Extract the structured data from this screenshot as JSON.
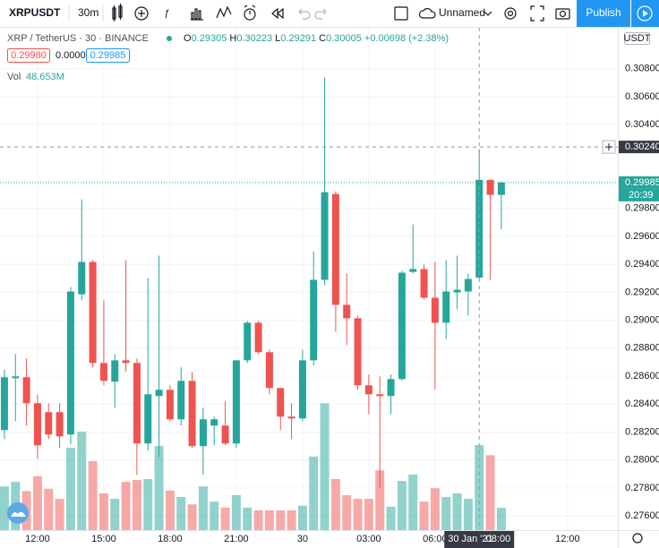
{
  "toolbar": {
    "symbol": "XRPUSDT",
    "interval": "30m",
    "layout_name": "Unnamed",
    "publish": "Publish"
  },
  "legend": {
    "title": "XRP / TetherUS · 30 · BINANCE",
    "o": "O",
    "h": "H",
    "l": "L",
    "c": "C",
    "change": "+0.00698 (+2.38%)",
    "bid": "0.29980",
    "spread": "0.00005",
    "ask": "0.29985",
    "volume_title": "Vol",
    "volume_label": "48.653M"
  },
  "chart_data": {
    "type": "candlestick",
    "currency": "USDT",
    "up_color": "#26a69a",
    "down_color": "#ef5350",
    "open": [
      0.28214,
      0.28585,
      0.28592,
      0.28406,
      0.28342,
      0.28342,
      0.28182,
      0.29186,
      0.29417,
      0.28694,
      0.2856,
      0.28713,
      0.28694,
      0.28118,
      0.28457,
      0.28502,
      0.28291,
      0.28566,
      0.28099,
      0.28246,
      0.28246,
      0.28118,
      0.28713,
      0.28982,
      0.28771,
      0.28515,
      0.2831,
      0.28297,
      0.28713,
      0.29289,
      0.29903,
      0.2911,
      0.29014,
      0.28534,
      0.2847,
      0.28457,
      0.28579,
      0.29346,
      0.29366,
      0.29161,
      0.28982,
      0.29199,
      0.29206,
      0.29305,
      0.30005,
      0.29897
    ],
    "high": [
      0.28649,
      0.28758,
      0.28726,
      0.2847,
      0.28406,
      0.28406,
      0.29238,
      0.29865,
      0.2943,
      0.29142,
      0.28758,
      0.2943,
      0.28726,
      0.29302,
      0.29462,
      0.28534,
      0.28662,
      0.2863,
      0.28374,
      0.2831,
      0.28419,
      0.28713,
      0.28995,
      0.28995,
      0.2879,
      0.28515,
      0.28406,
      0.2879,
      0.29494,
      0.30735,
      0.29922,
      0.29334,
      0.29033,
      0.28611,
      0.28598,
      0.28611,
      0.29353,
      0.29685,
      0.29398,
      0.29417,
      0.2943,
      0.29462,
      0.29334,
      0.30223,
      0.30005,
      0.29992
    ],
    "low": [
      0.2815,
      0.28278,
      0.28246,
      0.28009,
      0.2815,
      0.28086,
      0.28112,
      0.29142,
      0.28662,
      0.28534,
      0.28374,
      0.2863,
      0.27894,
      0.28067,
      0.28022,
      0.28278,
      0.28246,
      0.28086,
      0.27894,
      0.28105,
      0.28105,
      0.28086,
      0.28694,
      0.28758,
      0.2847,
      0.28214,
      0.2815,
      0.28278,
      0.28675,
      0.2925,
      0.28918,
      0.28822,
      0.28502,
      0.28329,
      0.27798,
      0.28329,
      0.28566,
      0.29334,
      0.29148,
      0.28502,
      0.28867,
      0.29078,
      0.29033,
      0.29291,
      0.29289,
      0.29653
    ],
    "close": [
      0.28592,
      0.28598,
      0.28406,
      0.28105,
      0.28182,
      0.28169,
      0.29206,
      0.29417,
      0.28694,
      0.28566,
      0.28713,
      0.28694,
      0.28118,
      0.2847,
      0.28502,
      0.28291,
      0.28566,
      0.28099,
      0.28291,
      0.28291,
      0.28118,
      0.28713,
      0.28982,
      0.28771,
      0.28515,
      0.2831,
      0.28297,
      0.28713,
      0.29289,
      0.29916,
      0.2911,
      0.29014,
      0.28534,
      0.2847,
      0.28457,
      0.28579,
      0.2934,
      0.29366,
      0.29161,
      0.28982,
      0.29206,
      0.29218,
      0.29295,
      0.30005,
      0.29897,
      0.29985
    ],
    "volume": [
      95,
      105,
      85,
      117,
      90,
      68,
      179,
      214,
      150,
      80,
      68,
      105,
      109,
      111,
      183,
      86,
      72,
      56,
      95,
      62,
      49,
      76,
      49,
      43,
      43,
      43,
      43,
      53,
      160,
      276,
      111,
      76,
      68,
      68,
      130,
      51,
      107,
      121,
      62,
      91,
      72,
      80,
      68,
      185,
      163,
      48.653
    ],
    "volume_ylim": [
      0,
      1093
    ],
    "xlim": [
      -0.4,
      55.55
    ],
    "xticks": [
      {
        "value": 3,
        "label": "12:00"
      },
      {
        "value": 9,
        "label": "15:00"
      },
      {
        "value": 15,
        "label": "18:00"
      },
      {
        "value": 21,
        "label": "21:00"
      },
      {
        "value": 27,
        "label": "30"
      },
      {
        "value": 33,
        "label": "03:00"
      },
      {
        "value": 39,
        "label": "06:00"
      },
      {
        "value": 51,
        "label": "12:00"
      }
    ],
    "ylim": [
      0.27498,
      0.31093
    ],
    "yticks": [
      {
        "value": 0.276,
        "label": "0.27600"
      },
      {
        "value": 0.278,
        "label": "0.27800"
      },
      {
        "value": 0.28,
        "label": "0.28000"
      },
      {
        "value": 0.282,
        "label": "0.28200"
      },
      {
        "value": 0.284,
        "label": "0.28400"
      },
      {
        "value": 0.286,
        "label": "0.28600"
      },
      {
        "value": 0.288,
        "label": "0.28800"
      },
      {
        "value": 0.29,
        "label": "0.29000"
      },
      {
        "value": 0.292,
        "label": "0.29200"
      },
      {
        "value": 0.294,
        "label": "0.29400"
      },
      {
        "value": 0.296,
        "label": "0.29600"
      },
      {
        "value": 0.298,
        "label": "0.29800"
      },
      {
        "value": 0.304,
        "label": "0.30400"
      },
      {
        "value": 0.306,
        "label": "0.30600"
      },
      {
        "value": 0.308,
        "label": "0.30800"
      }
    ],
    "grid": true,
    "crosshair": {
      "index": 43,
      "price": {
        "value": 0.3024,
        "label": "0.30240"
      },
      "date_label": "30 Jan '21",
      "time_label": "08:00"
    },
    "countdown": "20:39"
  }
}
